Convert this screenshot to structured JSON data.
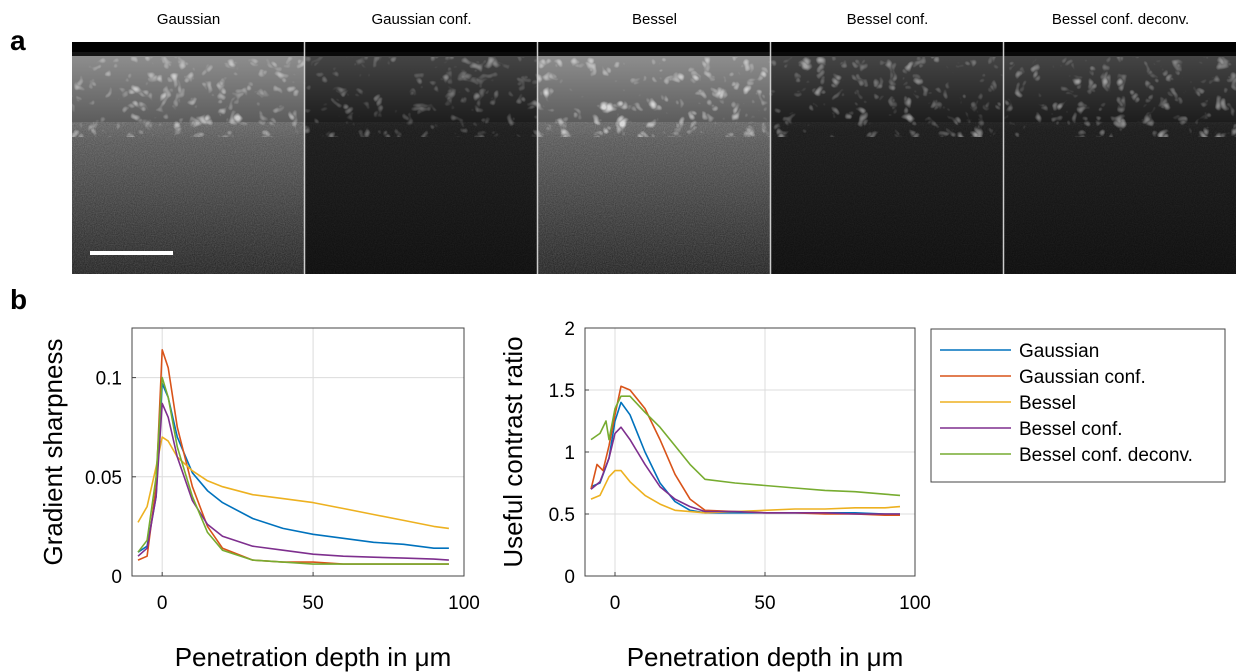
{
  "panel_a": {
    "label": "a",
    "images": [
      {
        "title": "Gaussian",
        "brightness": 0.9
      },
      {
        "title": "Gaussian conf.",
        "brightness": 0.6
      },
      {
        "title": "Bessel",
        "brightness": 1.0
      },
      {
        "title": "Bessel conf.",
        "brightness": 0.7
      },
      {
        "title": "Bessel conf. deconv.",
        "brightness": 0.72
      }
    ]
  },
  "panel_b": {
    "label": "b"
  },
  "colors": {
    "Gaussian": "#0072bd",
    "Gaussian conf.": "#d95319",
    "Bessel": "#edb120",
    "Bessel conf.": "#7e2f8e",
    "Bessel conf. deconv.": "#77ac30"
  },
  "chart_data": [
    {
      "type": "line",
      "xlabel": "Penetration depth in μm",
      "ylabel": "Gradient sharpness",
      "xlim": [
        -10,
        100
      ],
      "ylim": [
        0,
        0.125
      ],
      "xticks": [
        0,
        50,
        100
      ],
      "yticks": [
        0,
        0.05,
        0.1
      ],
      "ytick_labels": [
        "0",
        "0.05",
        "0.1"
      ],
      "grid": true,
      "series": [
        {
          "name": "Gaussian",
          "x": [
            -8,
            -5,
            -2,
            0,
            2,
            5,
            10,
            15,
            20,
            30,
            40,
            50,
            60,
            70,
            80,
            90,
            95
          ],
          "y": [
            0.012,
            0.015,
            0.04,
            0.097,
            0.09,
            0.07,
            0.052,
            0.043,
            0.037,
            0.029,
            0.024,
            0.021,
            0.019,
            0.017,
            0.016,
            0.014,
            0.014
          ]
        },
        {
          "name": "Gaussian conf.",
          "x": [
            -8,
            -5,
            -2,
            0,
            2,
            5,
            10,
            15,
            20,
            30,
            40,
            50,
            60,
            70,
            80,
            90,
            95
          ],
          "y": [
            0.008,
            0.01,
            0.045,
            0.114,
            0.105,
            0.075,
            0.045,
            0.025,
            0.014,
            0.008,
            0.007,
            0.007,
            0.006,
            0.006,
            0.006,
            0.006,
            0.006
          ]
        },
        {
          "name": "Bessel",
          "x": [
            -8,
            -5,
            -2,
            0,
            2,
            5,
            10,
            15,
            20,
            30,
            40,
            50,
            60,
            70,
            80,
            90,
            95
          ],
          "y": [
            0.027,
            0.035,
            0.055,
            0.07,
            0.068,
            0.06,
            0.053,
            0.048,
            0.045,
            0.041,
            0.039,
            0.037,
            0.034,
            0.031,
            0.028,
            0.025,
            0.024
          ]
        },
        {
          "name": "Bessel conf.",
          "x": [
            -8,
            -5,
            -2,
            0,
            2,
            5,
            10,
            15,
            20,
            30,
            40,
            50,
            60,
            70,
            80,
            90,
            95
          ],
          "y": [
            0.01,
            0.014,
            0.04,
            0.087,
            0.08,
            0.06,
            0.038,
            0.026,
            0.02,
            0.015,
            0.013,
            0.011,
            0.01,
            0.0095,
            0.009,
            0.0085,
            0.008
          ]
        },
        {
          "name": "Bessel conf. deconv.",
          "x": [
            -8,
            -5,
            -2,
            0,
            2,
            5,
            10,
            15,
            20,
            30,
            40,
            50,
            60,
            70,
            80,
            90,
            95
          ],
          "y": [
            0.012,
            0.018,
            0.05,
            0.1,
            0.09,
            0.065,
            0.04,
            0.022,
            0.013,
            0.008,
            0.007,
            0.006,
            0.006,
            0.006,
            0.006,
            0.006,
            0.006
          ]
        }
      ]
    },
    {
      "type": "line",
      "xlabel": "Penetration depth in μm",
      "ylabel": "Useful contrast ratio",
      "xlim": [
        -10,
        100
      ],
      "ylim": [
        0,
        2
      ],
      "xticks": [
        0,
        50,
        100
      ],
      "yticks": [
        0,
        0.5,
        1,
        1.5,
        2
      ],
      "ytick_labels": [
        "0",
        "0.5",
        "1",
        "1.5",
        "2"
      ],
      "grid": true,
      "legend_position": "outside-right",
      "series": [
        {
          "name": "Gaussian",
          "x": [
            -8,
            -5,
            -2,
            0,
            2,
            5,
            10,
            15,
            20,
            25,
            30,
            40,
            50,
            60,
            70,
            80,
            90,
            95
          ],
          "y": [
            0.72,
            0.75,
            0.95,
            1.25,
            1.4,
            1.3,
            1.0,
            0.75,
            0.6,
            0.53,
            0.51,
            0.51,
            0.51,
            0.51,
            0.51,
            0.51,
            0.5,
            0.5
          ]
        },
        {
          "name": "Gaussian conf.",
          "x": [
            -8,
            -6,
            -4,
            -2,
            0,
            2,
            5,
            10,
            15,
            20,
            25,
            30,
            40,
            50,
            60,
            70,
            80,
            90,
            95
          ],
          "y": [
            0.7,
            0.9,
            0.85,
            1.05,
            1.3,
            1.53,
            1.5,
            1.35,
            1.1,
            0.82,
            0.62,
            0.53,
            0.52,
            0.51,
            0.51,
            0.5,
            0.5,
            0.49,
            0.49
          ]
        },
        {
          "name": "Bessel",
          "x": [
            -8,
            -5,
            -2,
            0,
            2,
            5,
            10,
            15,
            20,
            30,
            40,
            50,
            60,
            70,
            80,
            90,
            95
          ],
          "y": [
            0.62,
            0.65,
            0.8,
            0.85,
            0.85,
            0.76,
            0.65,
            0.58,
            0.53,
            0.51,
            0.52,
            0.53,
            0.54,
            0.54,
            0.55,
            0.55,
            0.56
          ]
        },
        {
          "name": "Bessel conf.",
          "x": [
            -8,
            -5,
            -2,
            0,
            2,
            5,
            10,
            15,
            20,
            25,
            30,
            40,
            50,
            60,
            70,
            80,
            90,
            95
          ],
          "y": [
            0.7,
            0.76,
            0.95,
            1.15,
            1.2,
            1.1,
            0.9,
            0.72,
            0.62,
            0.56,
            0.52,
            0.52,
            0.51,
            0.51,
            0.51,
            0.5,
            0.5,
            0.5
          ]
        },
        {
          "name": "Bessel conf. deconv.",
          "x": [
            -8,
            -5,
            -3,
            -2,
            0,
            2,
            5,
            10,
            15,
            20,
            25,
            30,
            40,
            50,
            60,
            70,
            80,
            90,
            95
          ],
          "y": [
            1.1,
            1.15,
            1.25,
            1.1,
            1.35,
            1.45,
            1.45,
            1.32,
            1.2,
            1.05,
            0.9,
            0.78,
            0.75,
            0.73,
            0.71,
            0.69,
            0.68,
            0.66,
            0.65
          ]
        }
      ]
    }
  ]
}
